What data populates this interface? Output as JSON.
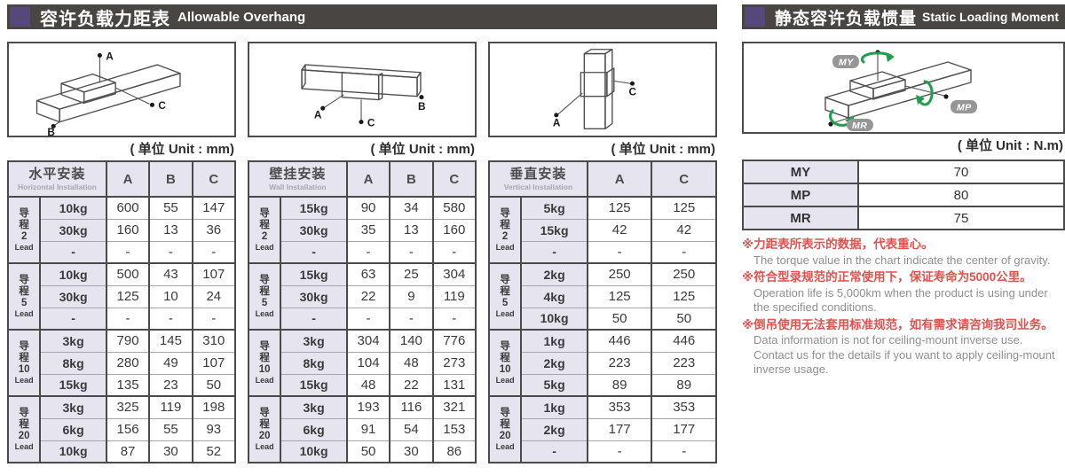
{
  "headers": {
    "left": {
      "zh": "容许负载力距表",
      "en": "Allowable Overhang"
    },
    "right": {
      "zh": "静态容许负载惯量",
      "en": "Static Loading Moment"
    }
  },
  "units": {
    "mm": "( 单位 Unit : mm)",
    "nm": "( 单位 Unit : N.m)"
  },
  "point_labels": {
    "a": "A",
    "b": "B",
    "c": "C"
  },
  "moment_labels": {
    "my": "MY",
    "mp": "MP",
    "mr": "MR"
  },
  "lead_word": {
    "zh_chars": [
      "导",
      "程"
    ],
    "en": "Lead"
  },
  "overhang_tables": [
    {
      "title_zh": "水平安装",
      "title_en": "Horizontal Installation",
      "columns": [
        "A",
        "B",
        "C"
      ],
      "groups": [
        {
          "lead": "2",
          "rows": [
            {
              "load": "10kg",
              "values": [
                "600",
                "55",
                "147"
              ]
            },
            {
              "load": "30kg",
              "values": [
                "160",
                "13",
                "36"
              ]
            },
            {
              "load": "-",
              "values": [
                "-",
                "-",
                "-"
              ]
            }
          ]
        },
        {
          "lead": "5",
          "rows": [
            {
              "load": "10kg",
              "values": [
                "500",
                "43",
                "107"
              ]
            },
            {
              "load": "30kg",
              "values": [
                "125",
                "10",
                "24"
              ]
            },
            {
              "load": "-",
              "values": [
                "-",
                "-",
                "-"
              ]
            }
          ]
        },
        {
          "lead": "10",
          "rows": [
            {
              "load": "3kg",
              "values": [
                "790",
                "145",
                "310"
              ]
            },
            {
              "load": "8kg",
              "values": [
                "280",
                "49",
                "107"
              ]
            },
            {
              "load": "15kg",
              "values": [
                "135",
                "23",
                "50"
              ]
            }
          ]
        },
        {
          "lead": "20",
          "rows": [
            {
              "load": "3kg",
              "values": [
                "325",
                "119",
                "198"
              ]
            },
            {
              "load": "6kg",
              "values": [
                "156",
                "55",
                "93"
              ]
            },
            {
              "load": "10kg",
              "values": [
                "87",
                "30",
                "52"
              ]
            }
          ]
        }
      ]
    },
    {
      "title_zh": "壁挂安装",
      "title_en": "Wall Installation",
      "columns": [
        "A",
        "B",
        "C"
      ],
      "groups": [
        {
          "lead": "2",
          "rows": [
            {
              "load": "15kg",
              "values": [
                "90",
                "34",
                "580"
              ]
            },
            {
              "load": "30kg",
              "values": [
                "35",
                "13",
                "160"
              ]
            },
            {
              "load": "-",
              "values": [
                "-",
                "-",
                "-"
              ]
            }
          ]
        },
        {
          "lead": "5",
          "rows": [
            {
              "load": "15kg",
              "values": [
                "63",
                "25",
                "304"
              ]
            },
            {
              "load": "30kg",
              "values": [
                "22",
                "9",
                "119"
              ]
            },
            {
              "load": "-",
              "values": [
                "-",
                "-",
                "-"
              ]
            }
          ]
        },
        {
          "lead": "10",
          "rows": [
            {
              "load": "3kg",
              "values": [
                "304",
                "140",
                "776"
              ]
            },
            {
              "load": "8kg",
              "values": [
                "104",
                "48",
                "273"
              ]
            },
            {
              "load": "15kg",
              "values": [
                "48",
                "22",
                "131"
              ]
            }
          ]
        },
        {
          "lead": "20",
          "rows": [
            {
              "load": "3kg",
              "values": [
                "193",
                "116",
                "321"
              ]
            },
            {
              "load": "6kg",
              "values": [
                "91",
                "54",
                "153"
              ]
            },
            {
              "load": "10kg",
              "values": [
                "50",
                "30",
                "86"
              ]
            }
          ]
        }
      ]
    },
    {
      "title_zh": "垂直安装",
      "title_en": "Vertical Installation",
      "columns": [
        "A",
        "C"
      ],
      "groups": [
        {
          "lead": "2",
          "rows": [
            {
              "load": "5kg",
              "values": [
                "125",
                "125"
              ]
            },
            {
              "load": "15kg",
              "values": [
                "42",
                "42"
              ]
            },
            {
              "load": "-",
              "values": [
                "-",
                "-"
              ]
            }
          ]
        },
        {
          "lead": "5",
          "rows": [
            {
              "load": "2kg",
              "values": [
                "250",
                "250"
              ]
            },
            {
              "load": "4kg",
              "values": [
                "125",
                "125"
              ]
            },
            {
              "load": "10kg",
              "values": [
                "50",
                "50"
              ]
            }
          ]
        },
        {
          "lead": "10",
          "rows": [
            {
              "load": "1kg",
              "values": [
                "446",
                "446"
              ]
            },
            {
              "load": "2kg",
              "values": [
                "223",
                "223"
              ]
            },
            {
              "load": "5kg",
              "values": [
                "89",
                "89"
              ]
            }
          ]
        },
        {
          "lead": "20",
          "rows": [
            {
              "load": "1kg",
              "values": [
                "353",
                "353"
              ]
            },
            {
              "load": "2kg",
              "values": [
                "177",
                "177"
              ]
            },
            {
              "load": "-",
              "values": [
                "-",
                "-"
              ]
            }
          ]
        }
      ]
    }
  ],
  "moment_table": {
    "rows": [
      {
        "label": "MY",
        "value": "70"
      },
      {
        "label": "MP",
        "value": "80"
      },
      {
        "label": "MR",
        "value": "75"
      }
    ]
  },
  "notes": [
    {
      "zh": "※力距表所表示的数据，代表重心。",
      "en": "The torque value in the chart indicate the center of gravity."
    },
    {
      "zh": "※符合型录规范的正常使用下，保证寿命为5000公里。",
      "en": "Operation life is 5,000km when the product is using under the specified conditions."
    },
    {
      "zh": "※倒吊使用无法套用标准规范，如有需求请咨询我司业务。",
      "en": "Data information is not for ceiling-mount inverse use. Contact us for the details if you want to apply ceiling-mount inverse usage."
    }
  ],
  "colors": {
    "header_bar": "#494542",
    "accent_purple": "#56487a",
    "cell_lavender": "#e5e4ef",
    "note_red": "#e0524e",
    "note_gray": "#8f8f8f",
    "arrow_green": "#1f9e4b"
  }
}
